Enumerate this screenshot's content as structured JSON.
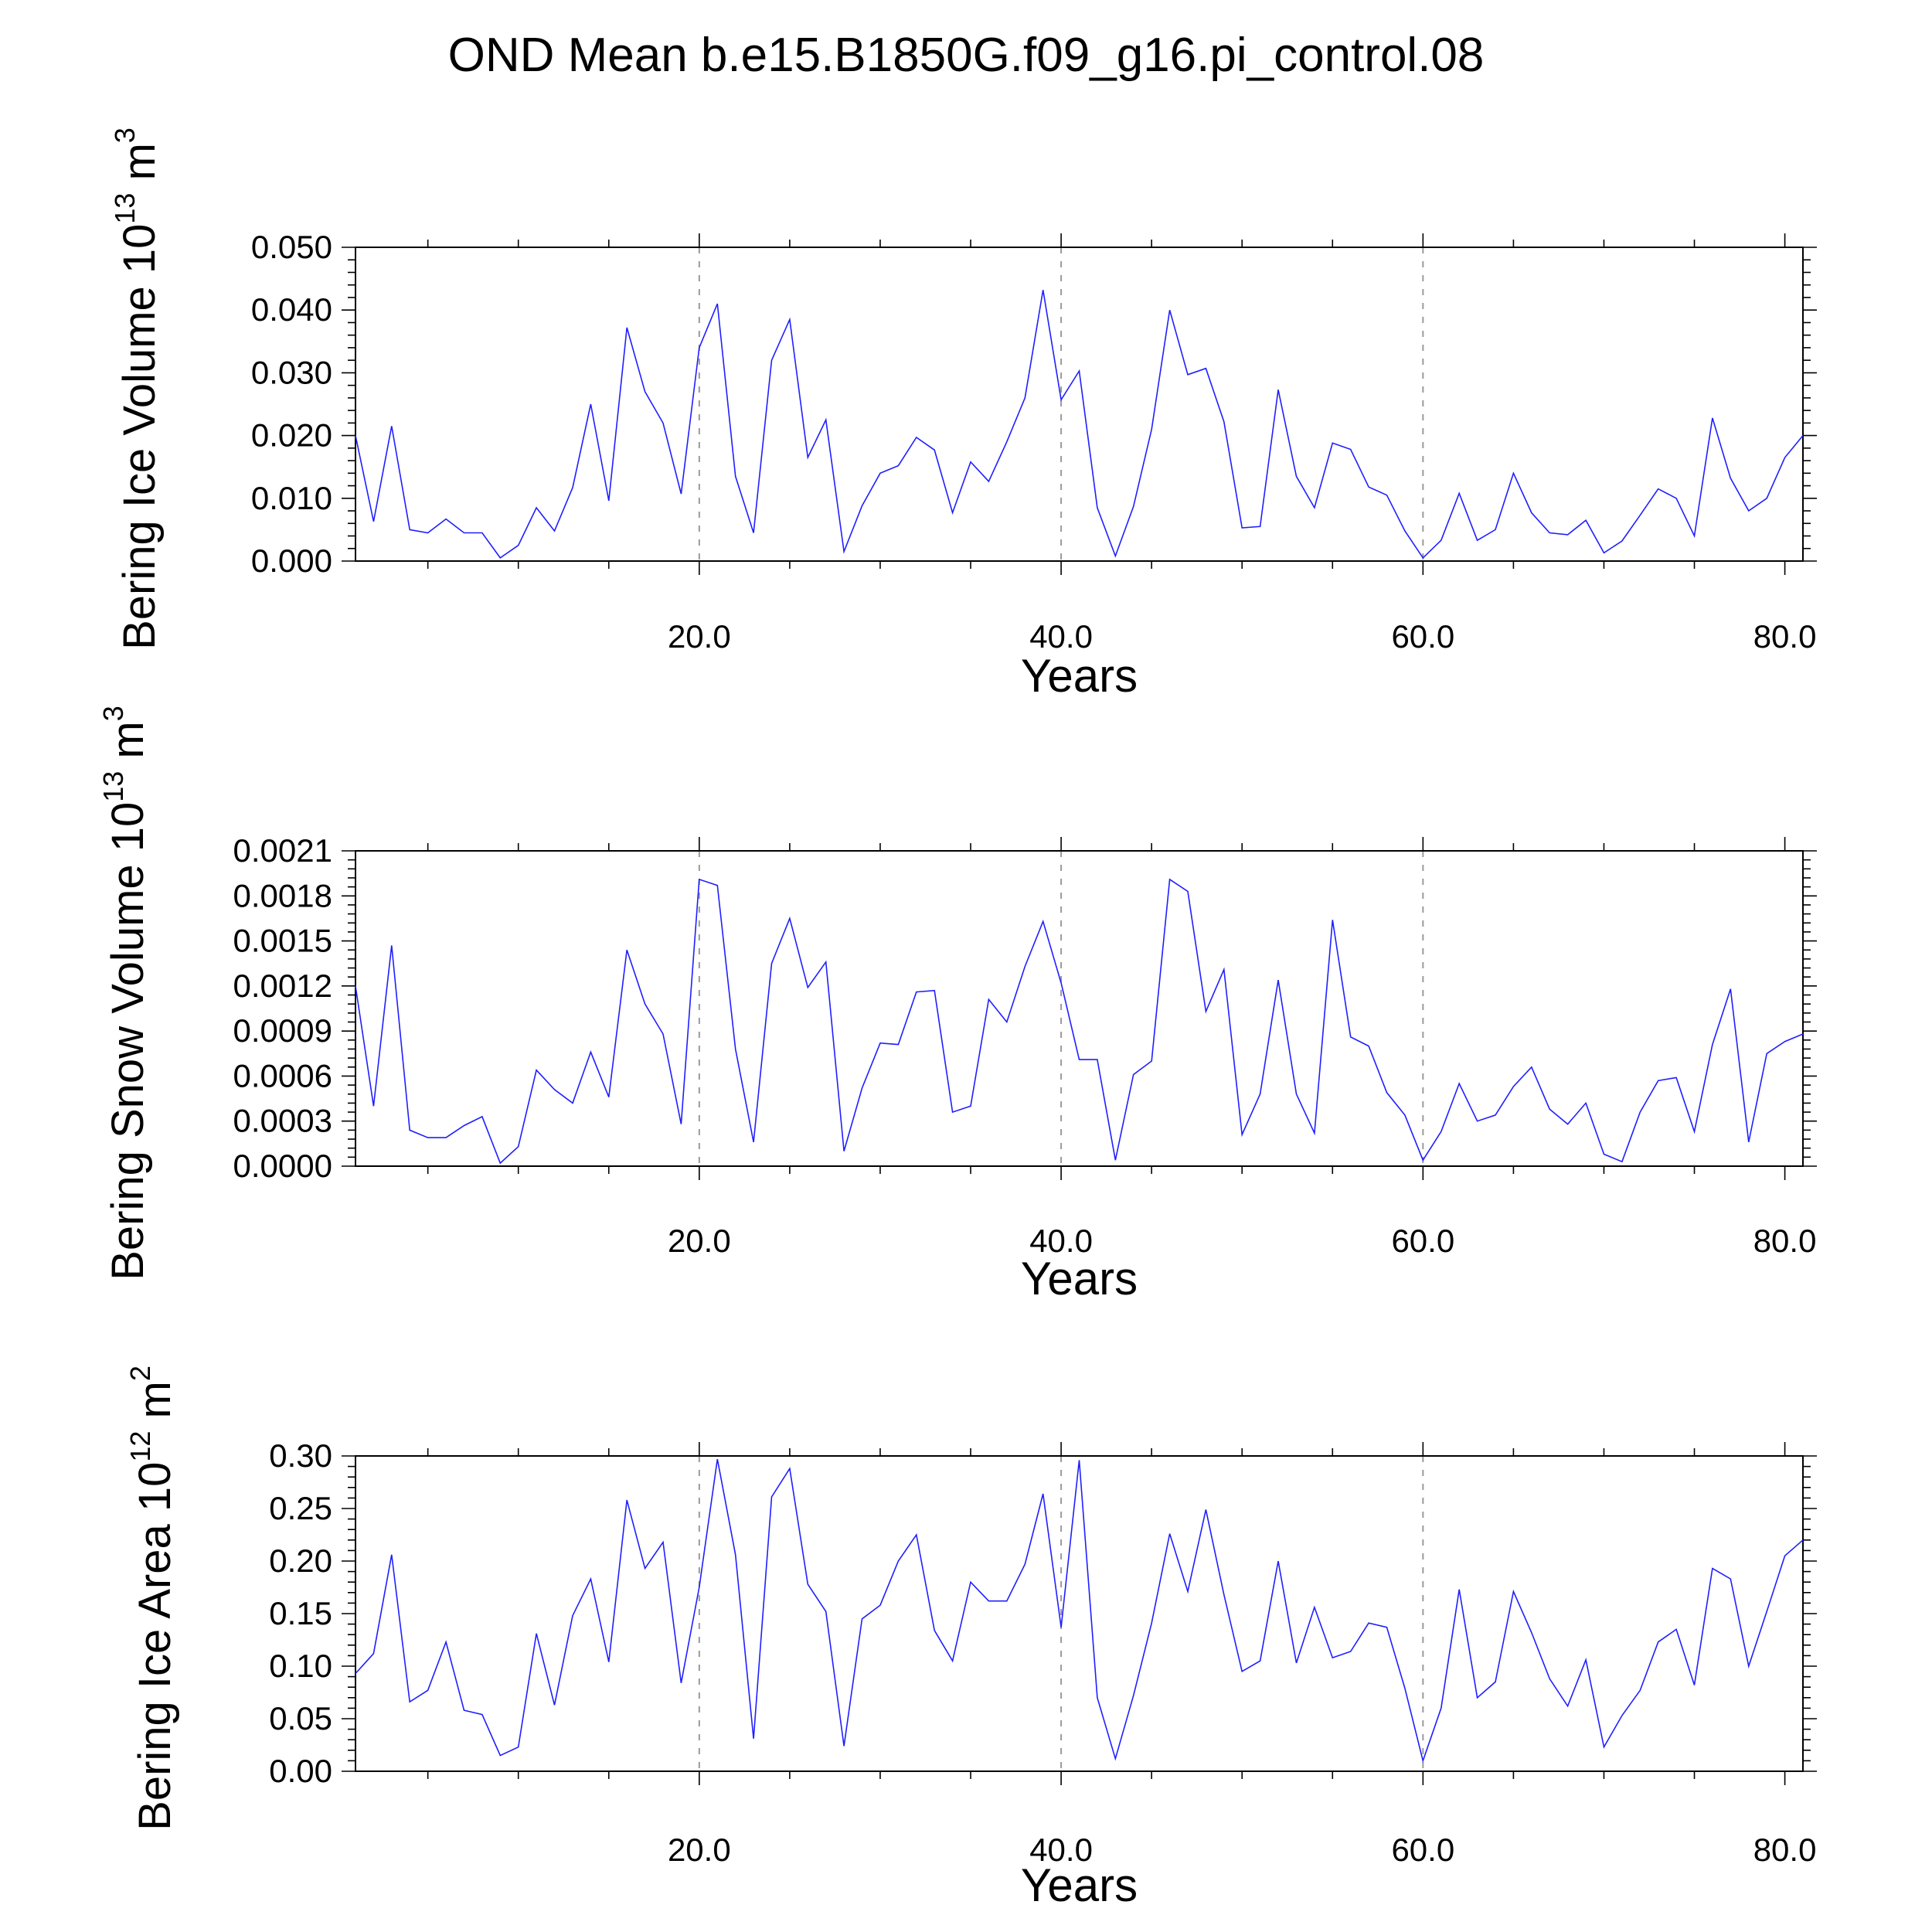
{
  "title": "OND Mean b.e15.B1850G.f09_g16.pi_control.08",
  "line_color": "#1f1fff",
  "grid_color": "#9a9a9a",
  "chart_data": [
    {
      "type": "line",
      "ylabel_main": "Bering Ice Volume 10",
      "ylabel_exp": "13",
      "ylabel_unit": " m",
      "ylabel_unit_exp": "3",
      "xlabel": "Years",
      "xlim": [
        1,
        81
      ],
      "ylim": [
        0,
        0.05
      ],
      "yticks": [
        0.0,
        0.01,
        0.02,
        0.03,
        0.04,
        0.05
      ],
      "ytick_labels": [
        "0.000",
        "0.010",
        "0.020",
        "0.030",
        "0.040",
        "0.050"
      ],
      "xticks": [
        20,
        40,
        60,
        80
      ],
      "xtick_labels": [
        "20.0",
        "40.0",
        "60.0",
        "80.0"
      ],
      "grid": "vertical dashed at 20, 40, 60",
      "x": [
        1,
        2,
        3,
        4,
        5,
        6,
        7,
        8,
        9,
        10,
        11,
        12,
        13,
        14,
        15,
        16,
        17,
        18,
        19,
        20,
        21,
        22,
        23,
        24,
        25,
        26,
        27,
        28,
        29,
        30,
        31,
        32,
        33,
        34,
        35,
        36,
        37,
        38,
        39,
        40,
        41,
        42,
        43,
        44,
        45,
        46,
        47,
        48,
        49,
        50,
        51,
        52,
        53,
        54,
        55,
        56,
        57,
        58,
        59,
        60,
        61,
        62,
        63,
        64,
        65,
        66,
        67,
        68,
        69,
        70,
        71,
        72,
        73,
        74,
        75,
        76,
        77,
        78,
        79,
        80,
        81
      ],
      "values": [
        0.02,
        0.0063,
        0.0215,
        0.005,
        0.0045,
        0.0067,
        0.0045,
        0.0045,
        0.0005,
        0.0025,
        0.0085,
        0.0048,
        0.0117,
        0.025,
        0.0096,
        0.0372,
        0.027,
        0.022,
        0.0107,
        0.034,
        0.041,
        0.0135,
        0.0045,
        0.032,
        0.0385,
        0.0165,
        0.0225,
        0.0015,
        0.0088,
        0.014,
        0.0152,
        0.0197,
        0.0177,
        0.0077,
        0.0158,
        0.0127,
        0.019,
        0.026,
        0.0432,
        0.0257,
        0.0303,
        0.0085,
        0.0008,
        0.0087,
        0.021,
        0.04,
        0.0297,
        0.0307,
        0.0222,
        0.0053,
        0.0055,
        0.0273,
        0.0135,
        0.0085,
        0.0188,
        0.0178,
        0.0118,
        0.0105,
        0.0048,
        0.0005,
        0.0033,
        0.0108,
        0.0033,
        0.005,
        0.014,
        0.0077,
        0.0045,
        0.0042,
        0.0065,
        0.0013,
        0.0032,
        0.0073,
        0.0115,
        0.01,
        0.004,
        0.0228,
        0.0132,
        0.008,
        0.01,
        0.0165,
        0.02
      ]
    },
    {
      "type": "line",
      "ylabel_main": "Bering Snow Volume 10",
      "ylabel_exp": "13",
      "ylabel_unit": " m",
      "ylabel_unit_exp": "3",
      "xlabel": "Years",
      "xlim": [
        1,
        81
      ],
      "ylim": [
        0,
        0.0021
      ],
      "yticks": [
        0.0,
        0.0003,
        0.0006,
        0.0009,
        0.0012,
        0.0015,
        0.0018,
        0.0021
      ],
      "ytick_labels": [
        "0.0000",
        "0.0003",
        "0.0006",
        "0.0009",
        "0.0012",
        "0.0015",
        "0.0018",
        "0.0021"
      ],
      "xticks": [
        20,
        40,
        60,
        80
      ],
      "xtick_labels": [
        "20.0",
        "40.0",
        "60.0",
        "80.0"
      ],
      "grid": "vertical dashed at 20, 40, 60",
      "x": [
        1,
        2,
        3,
        4,
        5,
        6,
        7,
        8,
        9,
        10,
        11,
        12,
        13,
        14,
        15,
        16,
        17,
        18,
        19,
        20,
        21,
        22,
        23,
        24,
        25,
        26,
        27,
        28,
        29,
        30,
        31,
        32,
        33,
        34,
        35,
        36,
        37,
        38,
        39,
        40,
        41,
        42,
        43,
        44,
        45,
        46,
        47,
        48,
        49,
        50,
        51,
        52,
        53,
        54,
        55,
        56,
        57,
        58,
        59,
        60,
        61,
        62,
        63,
        64,
        65,
        66,
        67,
        68,
        69,
        70,
        71,
        72,
        73,
        74,
        75,
        76,
        77,
        78,
        79,
        80,
        81
      ],
      "values": [
        0.0012,
        0.0004,
        0.00147,
        0.00024,
        0.00019,
        0.00019,
        0.00027,
        0.00033,
        2e-05,
        0.00013,
        0.00064,
        0.00051,
        0.00042,
        0.00076,
        0.00046,
        0.00144,
        0.00108,
        0.00088,
        0.00028,
        0.00191,
        0.00187,
        0.00078,
        0.00016,
        0.00135,
        0.00165,
        0.00119,
        0.00136,
        0.0001,
        0.00052,
        0.00082,
        0.00081,
        0.00116,
        0.00117,
        0.00036,
        0.0004,
        0.00111,
        0.00096,
        0.00133,
        0.00163,
        0.00122,
        0.00071,
        0.00071,
        4e-05,
        0.00061,
        0.0007,
        0.00191,
        0.00183,
        0.00103,
        0.00131,
        0.00021,
        0.00048,
        0.00124,
        0.00048,
        0.00022,
        0.00164,
        0.00086,
        0.0008,
        0.00049,
        0.00034,
        4e-05,
        0.00023,
        0.00055,
        0.0003,
        0.00034,
        0.00053,
        0.00066,
        0.00038,
        0.00028,
        0.00042,
        8e-05,
        3e-05,
        0.00036,
        0.00057,
        0.00059,
        0.00023,
        0.00081,
        0.00118,
        0.00016,
        0.00075,
        0.00083,
        0.00088
      ]
    },
    {
      "type": "line",
      "ylabel_main": "Bering Ice Area 10",
      "ylabel_exp": "12",
      "ylabel_unit": " m",
      "ylabel_unit_exp": "2",
      "xlabel": "Years",
      "xlim": [
        1,
        81
      ],
      "ylim": [
        0,
        0.3
      ],
      "yticks": [
        0.0,
        0.05,
        0.1,
        0.15,
        0.2,
        0.25,
        0.3
      ],
      "ytick_labels": [
        "0.00",
        "0.05",
        "0.10",
        "0.15",
        "0.20",
        "0.25",
        "0.30"
      ],
      "xticks": [
        20,
        40,
        60,
        80
      ],
      "xtick_labels": [
        "20.0",
        "40.0",
        "60.0",
        "80.0"
      ],
      "grid": "vertical dashed at 20, 40, 60",
      "x": [
        1,
        2,
        3,
        4,
        5,
        6,
        7,
        8,
        9,
        10,
        11,
        12,
        13,
        14,
        15,
        16,
        17,
        18,
        19,
        20,
        21,
        22,
        23,
        24,
        25,
        26,
        27,
        28,
        29,
        30,
        31,
        32,
        33,
        34,
        35,
        36,
        37,
        38,
        39,
        40,
        41,
        42,
        43,
        44,
        45,
        46,
        47,
        48,
        49,
        50,
        51,
        52,
        53,
        54,
        55,
        56,
        57,
        58,
        59,
        60,
        61,
        62,
        63,
        64,
        65,
        66,
        67,
        68,
        69,
        70,
        71,
        72,
        73,
        74,
        75,
        76,
        77,
        78,
        79,
        80,
        81
      ],
      "values": [
        0.093,
        0.112,
        0.206,
        0.066,
        0.077,
        0.123,
        0.058,
        0.054,
        0.015,
        0.023,
        0.131,
        0.063,
        0.148,
        0.183,
        0.104,
        0.258,
        0.193,
        0.218,
        0.084,
        0.175,
        0.297,
        0.206,
        0.031,
        0.261,
        0.288,
        0.178,
        0.152,
        0.024,
        0.145,
        0.158,
        0.2,
        0.225,
        0.134,
        0.105,
        0.18,
        0.162,
        0.162,
        0.197,
        0.264,
        0.137,
        0.296,
        0.07,
        0.012,
        0.072,
        0.141,
        0.226,
        0.171,
        0.249,
        0.168,
        0.095,
        0.105,
        0.2,
        0.103,
        0.156,
        0.108,
        0.114,
        0.141,
        0.137,
        0.079,
        0.01,
        0.06,
        0.173,
        0.07,
        0.085,
        0.171,
        0.132,
        0.088,
        0.062,
        0.106,
        0.023,
        0.053,
        0.077,
        0.123,
        0.135,
        0.082,
        0.193,
        0.183,
        0.1,
        0.152,
        0.205,
        0.22
      ]
    }
  ]
}
